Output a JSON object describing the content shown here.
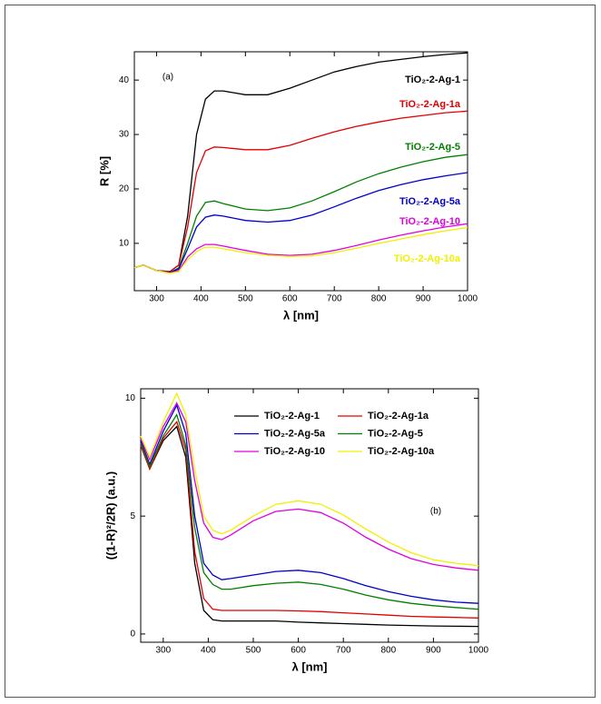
{
  "chart_data": [
    {
      "type": "line",
      "panel_label": "(a)",
      "xlabel": "λ [nm]",
      "ylabel": "R [%]",
      "legend": "end-labels",
      "x": [
        250,
        270,
        300,
        330,
        350,
        370,
        390,
        410,
        430,
        450,
        500,
        550,
        600,
        650,
        700,
        750,
        800,
        850,
        900,
        950,
        1000
      ],
      "xlim": [
        250,
        1000
      ],
      "ylim": [
        1.3,
        45.2
      ],
      "xticks": [
        300,
        400,
        500,
        600,
        700,
        800,
        900,
        1000
      ],
      "yticks": [
        10,
        20,
        30,
        40
      ],
      "series": [
        {
          "name": "TiO₂-2-Ag-1",
          "color": "#000000",
          "values": [
            5.5,
            6,
            5,
            4.8,
            6,
            15,
            30,
            36.5,
            38,
            38,
            37.3,
            37.3,
            38.5,
            40,
            41.5,
            42.5,
            43.3,
            43.8,
            44.3,
            44.7,
            45
          ]
        },
        {
          "name": "TiO₂-2-Ag-1a",
          "color": "#e00000",
          "values": [
            5.5,
            6,
            5,
            4.8,
            6,
            13,
            23,
            27,
            27.7,
            27.6,
            27.2,
            27.2,
            28,
            29.3,
            30.5,
            31.5,
            32.3,
            33,
            33.5,
            34,
            34.3
          ]
        },
        {
          "name": "TiO₂-2-Ag-5",
          "color": "#008000",
          "values": [
            5.5,
            6,
            5,
            4.6,
            5.5,
            10,
            15,
            17.5,
            17.8,
            17.3,
            16.3,
            16,
            16.5,
            17.8,
            19.5,
            21.3,
            22.8,
            24,
            25,
            25.8,
            26.3
          ]
        },
        {
          "name": "TiO₂-2-Ag-5a",
          "color": "#0000cc",
          "values": [
            5.5,
            6,
            5,
            4.6,
            5.3,
            9,
            13,
            14.8,
            15.2,
            15,
            14.2,
            13.9,
            14.2,
            15.2,
            16.7,
            18.3,
            19.7,
            20.8,
            21.7,
            22.4,
            23
          ]
        },
        {
          "name": "TiO₂-2-Ag-10",
          "color": "#e000e0",
          "values": [
            5.5,
            6,
            5,
            4.5,
            5,
            7.5,
            9,
            9.8,
            9.8,
            9.5,
            8.7,
            8,
            7.8,
            8,
            8.7,
            9.6,
            10.6,
            11.5,
            12.3,
            13,
            13.6
          ]
        },
        {
          "name": "TiO₂-2-Ag-10a",
          "color": "#f0f000",
          "values": [
            5.5,
            6,
            5,
            4.5,
            4.8,
            7,
            8.5,
            9.3,
            9.3,
            9,
            8.3,
            7.8,
            7.6,
            7.7,
            8.3,
            9.1,
            10,
            10.8,
            11.6,
            12.3,
            12.9
          ]
        }
      ]
    },
    {
      "type": "line",
      "panel_label": "(b)",
      "xlabel": "λ [nm]",
      "ylabel": "((1-R)²/2R) (a.u.)",
      "legend": "upper right",
      "x": [
        250,
        270,
        300,
        330,
        350,
        370,
        390,
        410,
        430,
        450,
        500,
        550,
        600,
        650,
        700,
        750,
        800,
        850,
        900,
        950,
        1000
      ],
      "xlim": [
        250,
        1000
      ],
      "ylim": [
        -0.35,
        10.4
      ],
      "xticks": [
        300,
        400,
        500,
        600,
        700,
        800,
        900,
        1000
      ],
      "yticks": [
        0,
        5,
        10
      ],
      "series": [
        {
          "name": "TiO₂-2-Ag-1",
          "color": "#000000",
          "values": [
            8,
            7,
            8.2,
            8.8,
            7.5,
            3,
            1,
            0.6,
            0.55,
            0.55,
            0.55,
            0.55,
            0.5,
            0.47,
            0.44,
            0.41,
            0.38,
            0.36,
            0.34,
            0.33,
            0.32
          ]
        },
        {
          "name": "TiO₂-2-Ag-1a",
          "color": "#e00000",
          "values": [
            8,
            7,
            8.3,
            9,
            7.8,
            3.5,
            1.5,
            1.05,
            1,
            1,
            1,
            1,
            0.98,
            0.95,
            0.9,
            0.85,
            0.8,
            0.75,
            0.72,
            0.7,
            0.68
          ]
        },
        {
          "name": "TiO₂-2-Ag-5a",
          "color": "#0000cc",
          "values": [
            8.2,
            7.2,
            8.6,
            9.7,
            8.5,
            5,
            3,
            2.5,
            2.3,
            2.35,
            2.5,
            2.65,
            2.7,
            2.6,
            2.35,
            2.05,
            1.8,
            1.6,
            1.45,
            1.35,
            1.3
          ]
        },
        {
          "name": "TiO₂-2-Ag-5",
          "color": "#008000",
          "values": [
            8.1,
            7.1,
            8.4,
            9.3,
            8,
            4.5,
            2.6,
            2.1,
            1.9,
            1.9,
            2.05,
            2.15,
            2.2,
            2.1,
            1.9,
            1.65,
            1.45,
            1.3,
            1.2,
            1.12,
            1.05
          ]
        },
        {
          "name": "TiO₂-2-Ag-10",
          "color": "#e000e0",
          "values": [
            8.3,
            7.4,
            8.8,
            9.8,
            9,
            6.5,
            4.7,
            4.1,
            4,
            4.2,
            4.8,
            5.2,
            5.3,
            5.15,
            4.7,
            4.1,
            3.6,
            3.2,
            2.95,
            2.8,
            2.7
          ]
        },
        {
          "name": "TiO₂-2-Ag-10a",
          "color": "#f0f000",
          "values": [
            8.4,
            7.5,
            9,
            10.2,
            9.3,
            7,
            5,
            4.4,
            4.25,
            4.4,
            5,
            5.5,
            5.65,
            5.5,
            5.05,
            4.45,
            3.9,
            3.45,
            3.15,
            3,
            2.9
          ]
        }
      ]
    }
  ]
}
